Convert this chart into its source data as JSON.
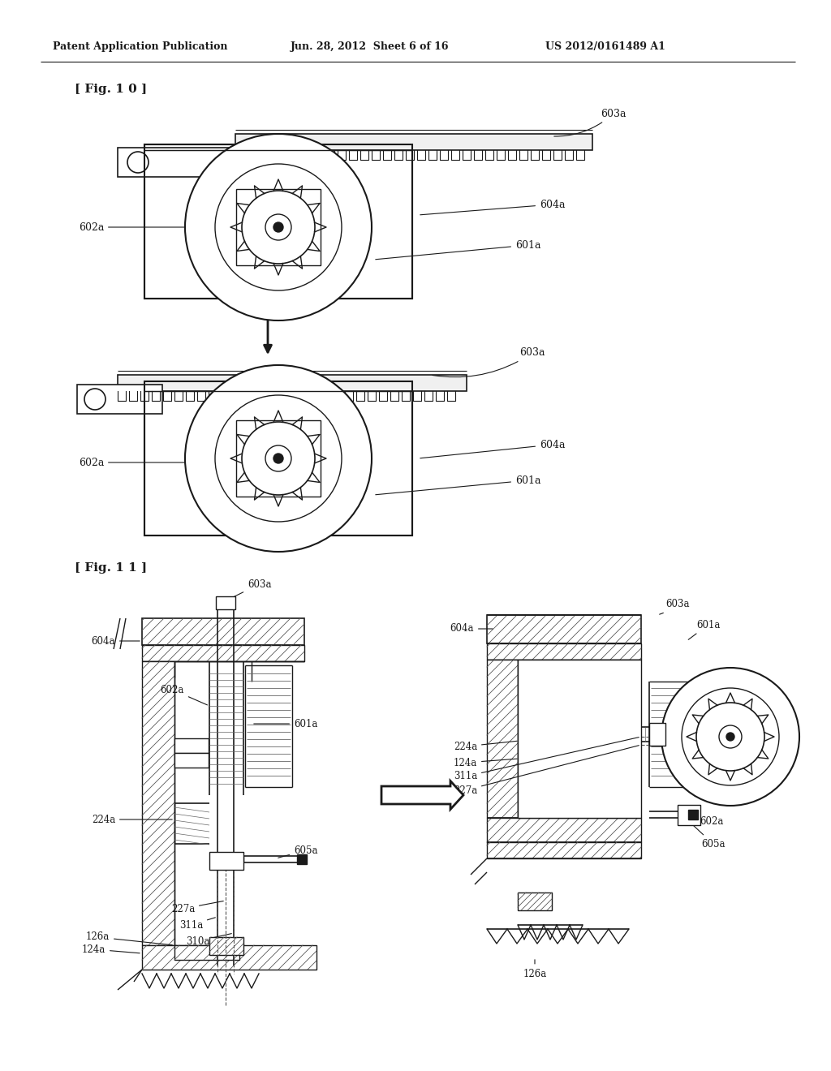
{
  "bg_color": "#ffffff",
  "line_color": "#1a1a1a",
  "header_text": "Patent Application Publication",
  "header_date": "Jun. 28, 2012  Sheet 6 of 16",
  "header_patent": "US 2012/0161489 A1",
  "fig10_label": "[ Fig. 1 0 ]",
  "fig11_label": "[ Fig. 1 1 ]"
}
